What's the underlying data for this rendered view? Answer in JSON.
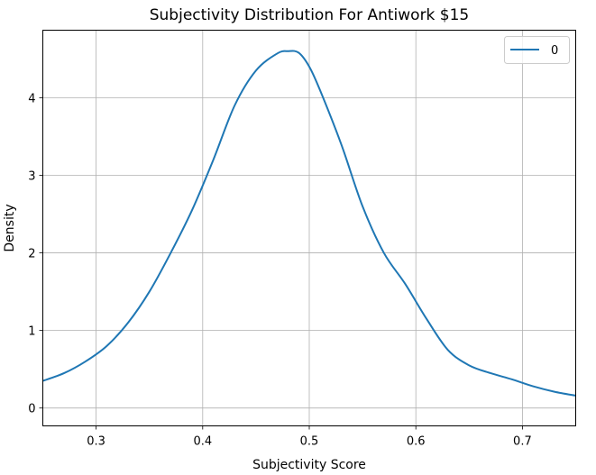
{
  "chart_data": {
    "type": "line",
    "title": "Subjectivity Distribution For Antiwork $15",
    "xlabel": "Subjectivity Score",
    "ylabel": "Density",
    "xlim": [
      0.25,
      0.75
    ],
    "ylim": [
      -0.23,
      4.87
    ],
    "x_ticks": [
      0.3,
      0.4,
      0.5,
      0.6,
      0.7
    ],
    "x_tick_labels": [
      "0.3",
      "0.4",
      "0.5",
      "0.6",
      "0.7"
    ],
    "y_ticks": [
      0,
      1,
      2,
      3,
      4
    ],
    "y_tick_labels": [
      "0",
      "1",
      "2",
      "3",
      "4"
    ],
    "grid": true,
    "legend_position": "upper right",
    "series": [
      {
        "name": "0",
        "color": "#1f77b4",
        "x": [
          0.25,
          0.27,
          0.29,
          0.31,
          0.33,
          0.35,
          0.37,
          0.39,
          0.41,
          0.43,
          0.45,
          0.47,
          0.48,
          0.49,
          0.5,
          0.51,
          0.53,
          0.55,
          0.57,
          0.59,
          0.61,
          0.63,
          0.65,
          0.67,
          0.69,
          0.71,
          0.73,
          0.75
        ],
        "values": [
          0.35,
          0.45,
          0.6,
          0.8,
          1.1,
          1.5,
          2.0,
          2.55,
          3.2,
          3.9,
          4.35,
          4.57,
          4.6,
          4.58,
          4.4,
          4.1,
          3.4,
          2.6,
          2.0,
          1.6,
          1.15,
          0.75,
          0.55,
          0.45,
          0.37,
          0.28,
          0.21,
          0.16
        ]
      }
    ]
  }
}
